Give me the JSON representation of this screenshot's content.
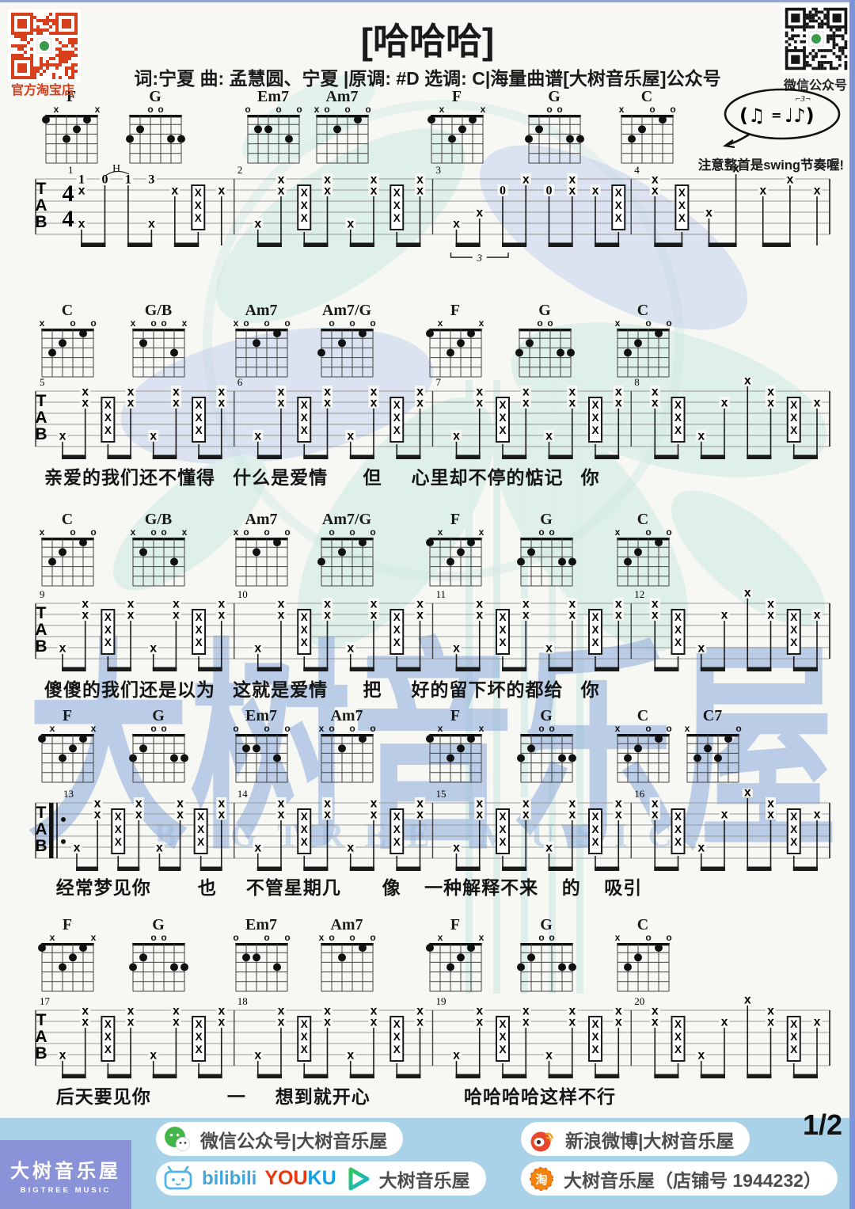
{
  "header": {
    "title": "[哈哈哈]",
    "subtitle": "词:宁夏  曲: 孟慧圆、宁夏 |原调: #D 选调: C|海量曲谱[大树音乐屋]公众号",
    "qr_left_label": "官方淘宝店",
    "qr_right_label": "微信公众号",
    "swing_note": "注意整首是swing节奏喔!"
  },
  "watermark": {
    "chars": [
      "大",
      "树",
      "音",
      "乐",
      "屋"
    ],
    "en": "BIGTREE MUSIC"
  },
  "music": {
    "clef": "TAB",
    "time_signature_top": "4",
    "time_signature_bottom": "4",
    "shapes": {
      "F": {
        "markers": [
          "",
          "x",
          "",
          "",
          "",
          "x"
        ],
        "dots": [
          [
            6,
            1
          ],
          [
            4,
            3
          ],
          [
            3,
            2
          ],
          [
            2,
            1
          ]
        ]
      },
      "G": {
        "markers": [
          "",
          "",
          "o",
          "o",
          "",
          ""
        ],
        "dots": [
          [
            6,
            3
          ],
          [
            5,
            2
          ],
          [
            2,
            3
          ],
          [
            1,
            3
          ]
        ]
      },
      "Em7": {
        "markers": [
          "o",
          "",
          "",
          "o",
          "",
          "o"
        ],
        "dots": [
          [
            5,
            2
          ],
          [
            4,
            2
          ],
          [
            2,
            3
          ]
        ]
      },
      "Am7": {
        "markers": [
          "x",
          "o",
          "",
          "o",
          "",
          "o"
        ],
        "dots": [
          [
            4,
            2
          ],
          [
            2,
            1
          ]
        ]
      },
      "C": {
        "markers": [
          "x",
          "",
          "",
          "o",
          "",
          "o"
        ],
        "dots": [
          [
            5,
            3
          ],
          [
            4,
            2
          ],
          [
            2,
            1
          ]
        ]
      },
      "C7": {
        "markers": [
          "x",
          "",
          "",
          "",
          "",
          "o"
        ],
        "dots": [
          [
            5,
            3
          ],
          [
            4,
            2
          ],
          [
            3,
            3
          ],
          [
            2,
            1
          ]
        ]
      },
      "G/B": {
        "markers": [
          "x",
          "",
          "o",
          "o",
          "",
          "x"
        ],
        "dots": [
          [
            5,
            2
          ],
          [
            2,
            3
          ]
        ]
      },
      "Am7/G": {
        "markers": [
          "",
          "o",
          "",
          "o",
          "",
          "o"
        ],
        "dots": [
          [
            6,
            3
          ],
          [
            4,
            2
          ],
          [
            2,
            1
          ]
        ]
      }
    },
    "patterns": {
      "A": [
        [
          [
            "x",
            5
          ]
        ],
        [
          [
            "x",
            1
          ],
          [
            "x",
            2
          ]
        ],
        [
          [
            "st"
          ]
        ],
        [
          [
            "x",
            1
          ],
          [
            "x",
            2
          ]
        ],
        [
          [
            "x",
            5
          ]
        ],
        [
          [
            "x",
            1
          ],
          [
            "x",
            2
          ]
        ],
        [
          [
            "st"
          ]
        ],
        [
          [
            "x",
            1
          ],
          [
            "x",
            2
          ]
        ]
      ],
      "B": [
        [
          [
            "x",
            1
          ],
          [
            "x",
            2
          ]
        ],
        [
          [
            "st"
          ]
        ],
        [
          [
            "x",
            5
          ]
        ],
        [
          [
            "x",
            2
          ]
        ],
        [
          [
            "x",
            0
          ]
        ],
        [
          [
            "x",
            1
          ],
          [
            "x",
            2
          ]
        ],
        [
          [
            "st"
          ]
        ],
        [
          [
            "x",
            2
          ]
        ]
      ],
      "I1": [
        [
          [
            "n",
            1,
            "1"
          ],
          [
            "x",
            2
          ],
          [
            "x",
            5
          ]
        ],
        [
          [
            "n",
            1,
            "0"
          ]
        ],
        [
          [
            "n",
            1,
            "1"
          ]
        ],
        [
          [
            "n",
            1,
            "3"
          ],
          [
            "x",
            5
          ]
        ],
        [
          [
            "x",
            2
          ]
        ],
        [
          [
            "st"
          ]
        ],
        [
          [
            "x",
            2
          ]
        ]
      ],
      "I3": [
        [
          [
            "x",
            5
          ]
        ],
        [
          [
            "x",
            4
          ]
        ],
        [
          [
            "n",
            2,
            "0"
          ]
        ],
        [
          [
            "x",
            1
          ]
        ],
        [
          [
            "n",
            2,
            "0"
          ]
        ],
        [
          [
            "x",
            1
          ],
          [
            "x",
            2
          ]
        ],
        [
          [
            "x",
            2
          ]
        ],
        [
          [
            "st"
          ]
        ]
      ],
      "I4": [
        [
          [
            "x",
            1
          ],
          [
            "x",
            2
          ]
        ],
        [
          [
            "st"
          ]
        ],
        [
          [
            "x",
            4
          ]
        ],
        [
          [
            "x",
            0
          ]
        ],
        [
          [
            "x",
            2
          ]
        ],
        [
          [
            "x",
            1
          ]
        ],
        [
          [
            "x",
            2
          ]
        ]
      ]
    },
    "systems": [
      {
        "chords": [
          [
            "F",
            90
          ],
          [
            "G",
            196
          ],
          [
            "Em7",
            345
          ],
          [
            "Am7",
            432
          ],
          [
            "F",
            577
          ],
          [
            "G",
            700
          ],
          [
            "C",
            817
          ]
        ],
        "bars": [
          [
            "1",
            "I1"
          ],
          [
            "2",
            "A"
          ],
          [
            "3",
            "I3"
          ],
          [
            "4",
            "I4"
          ]
        ],
        "annotations": {
          "hammer": "H",
          "triplet": "3"
        },
        "lyrics": ""
      },
      {
        "chords": [
          [
            "C",
            85
          ],
          [
            "G/B",
            200
          ],
          [
            "Am7",
            330
          ],
          [
            "Am7/G",
            438
          ],
          [
            "F",
            575
          ],
          [
            "G",
            688
          ],
          [
            "C",
            812
          ]
        ],
        "bars": [
          [
            "5",
            "A"
          ],
          [
            "6",
            "A"
          ],
          [
            "7",
            "A"
          ],
          [
            "8",
            "B"
          ]
        ],
        "lyrics": "亲爱的我们还不懂得   什么是爱情      但     心里却不停的惦记   你"
      },
      {
        "chords": [
          [
            "C",
            85
          ],
          [
            "G/B",
            200
          ],
          [
            "Am7",
            330
          ],
          [
            "Am7/G",
            438
          ],
          [
            "F",
            575
          ],
          [
            "G",
            690
          ],
          [
            "C",
            812
          ]
        ],
        "bars": [
          [
            "9",
            "A"
          ],
          [
            "10",
            "A"
          ],
          [
            "11",
            "A"
          ],
          [
            "12",
            "B"
          ]
        ],
        "lyrics": "傻傻的我们还是以为   这就是爱情      把     好的留下坏的都给   你"
      },
      {
        "chords": [
          [
            "F",
            85
          ],
          [
            "G",
            200
          ],
          [
            "Em7",
            330
          ],
          [
            "Am7",
            438
          ],
          [
            "F",
            575
          ],
          [
            "G",
            690
          ],
          [
            "C",
            812
          ],
          [
            "C7",
            900
          ]
        ],
        "bars": [
          [
            "13",
            "A"
          ],
          [
            "14",
            "A"
          ],
          [
            "15",
            "A"
          ],
          [
            "16",
            "B"
          ]
        ],
        "repeat_start": true,
        "lyrics": "  经常梦见你        也     不管星期几       像    一种解释不来    的    吸引"
      },
      {
        "chords": [
          [
            "F",
            85
          ],
          [
            "G",
            200
          ],
          [
            "Em7",
            330
          ],
          [
            "Am7",
            438
          ],
          [
            "F",
            575
          ],
          [
            "G",
            690
          ],
          [
            "C",
            812
          ]
        ],
        "bars": [
          [
            "17",
            "A"
          ],
          [
            "18",
            "A"
          ],
          [
            "19",
            "A"
          ],
          [
            "20",
            "B"
          ]
        ],
        "lyrics": "  后天要见你             一     想到就开心                哈哈哈哈这样不行"
      }
    ]
  },
  "footer": {
    "brand_cn": "大树音乐屋",
    "brand_en": "BIGTREE MUSIC",
    "page_label": "1/2",
    "wechat_pill": "微信公众号|大树音乐屋",
    "weibo_pill": "新浪微博|大树音乐屋",
    "bilibili_label": "bilibili",
    "youku_you": "YOU",
    "youku_ku": "KU",
    "video_pill_text": "大树音乐屋",
    "taobao_pill": "大树音乐屋（店铺号 1944232）"
  }
}
